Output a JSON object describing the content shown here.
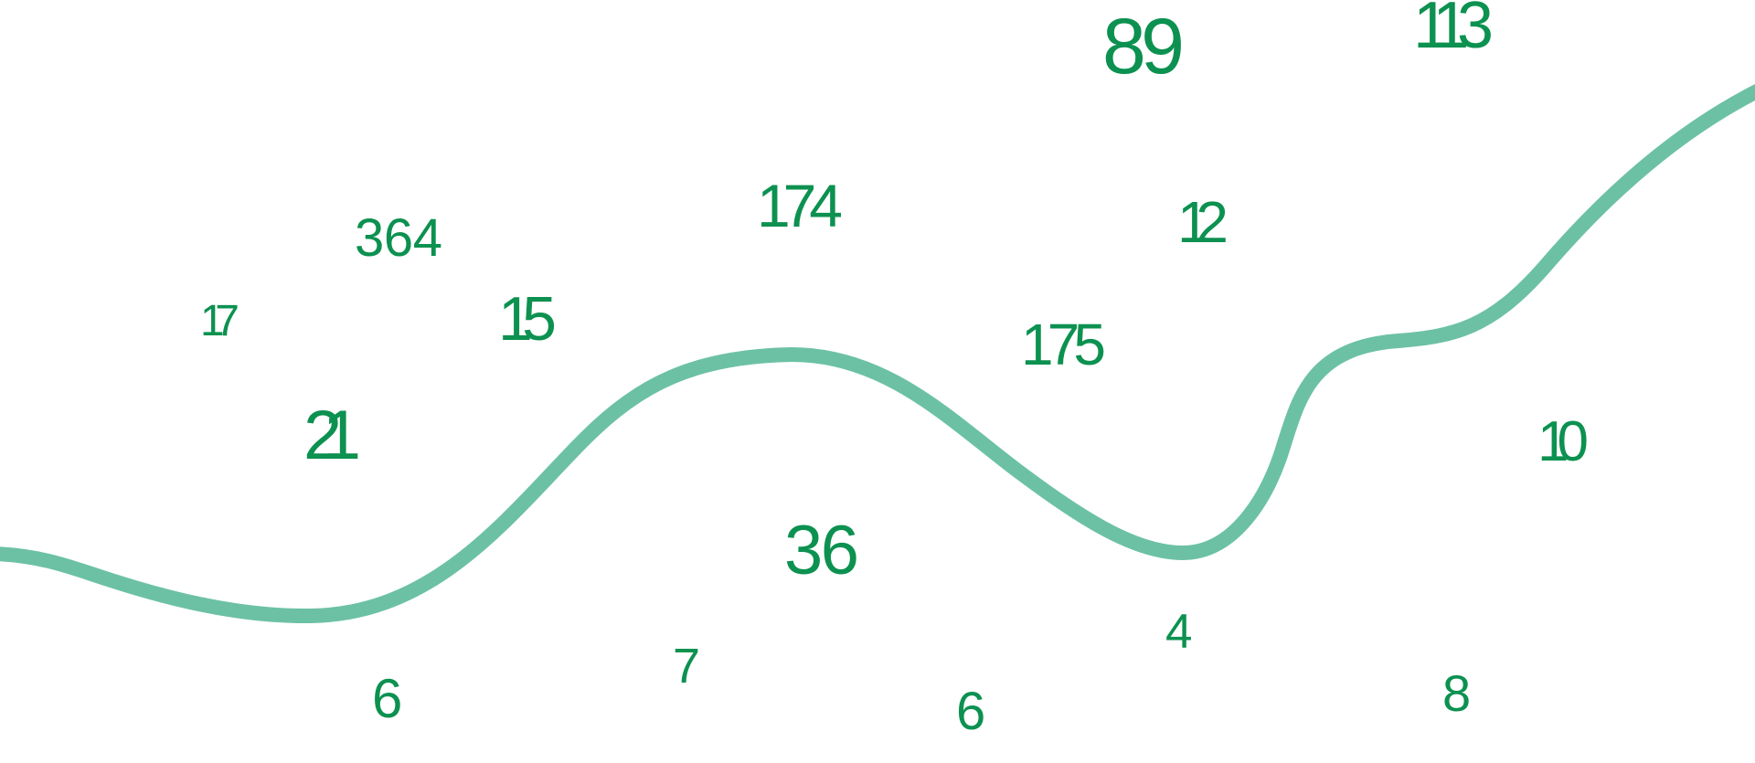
{
  "colors": {
    "number": "#0c9150",
    "curve": "#6cc1a5",
    "background": "#ffffff"
  },
  "numbers": [
    "89",
    "113",
    "174",
    "364",
    "12",
    "17",
    "15",
    "175",
    "21",
    "10",
    "36",
    "4",
    "7",
    "6",
    "6",
    "8"
  ]
}
